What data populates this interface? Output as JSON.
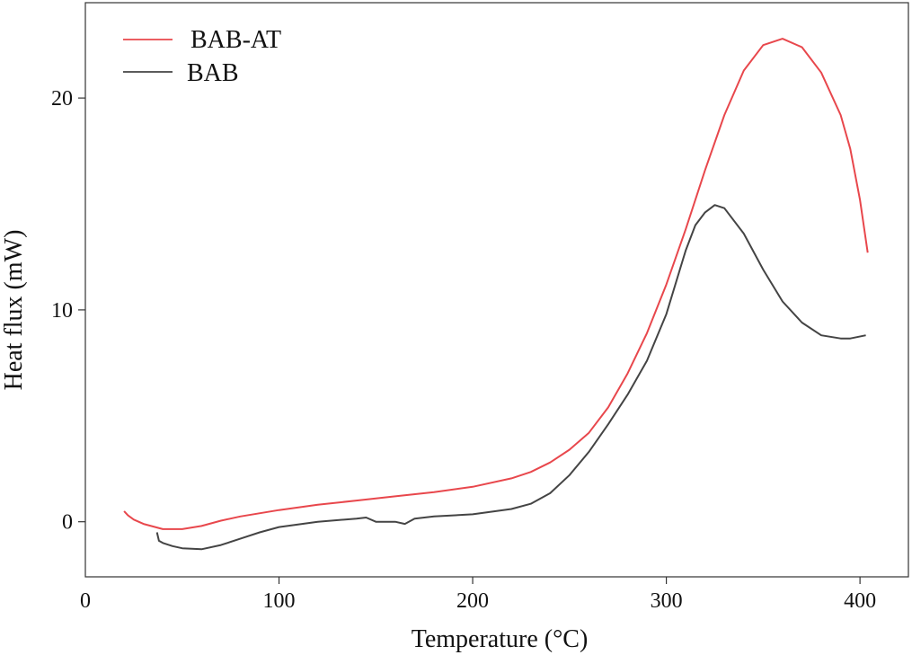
{
  "chart_data": {
    "type": "line",
    "xlabel": "Temperature (°C)",
    "ylabel": "Heat flux (mW)",
    "xlim": [
      0,
      425
    ],
    "ylim": [
      -2.6,
      24.5
    ],
    "x_ticks": [
      {
        "value": 0,
        "label": "0"
      },
      {
        "value": 100,
        "label": "100"
      },
      {
        "value": 200,
        "label": "200"
      },
      {
        "value": 300,
        "label": "300"
      },
      {
        "value": 400,
        "label": "400"
      }
    ],
    "y_ticks": [
      {
        "value": 0,
        "label": "0"
      },
      {
        "value": 10,
        "label": "10"
      },
      {
        "value": 20,
        "label": "20"
      }
    ],
    "grid": false,
    "legend_position": "top-left",
    "series": [
      {
        "name": "BAB-AT",
        "color": "#e8474c",
        "points": [
          [
            20,
            0.5
          ],
          [
            22,
            0.3
          ],
          [
            25,
            0.1
          ],
          [
            30,
            -0.1
          ],
          [
            40,
            -0.35
          ],
          [
            50,
            -0.35
          ],
          [
            60,
            -0.2
          ],
          [
            70,
            0.05
          ],
          [
            80,
            0.25
          ],
          [
            100,
            0.55
          ],
          [
            120,
            0.8
          ],
          [
            140,
            1.0
          ],
          [
            160,
            1.2
          ],
          [
            180,
            1.4
          ],
          [
            200,
            1.65
          ],
          [
            220,
            2.05
          ],
          [
            230,
            2.35
          ],
          [
            240,
            2.8
          ],
          [
            250,
            3.4
          ],
          [
            260,
            4.2
          ],
          [
            270,
            5.4
          ],
          [
            280,
            7.0
          ],
          [
            290,
            8.9
          ],
          [
            300,
            11.2
          ],
          [
            310,
            13.8
          ],
          [
            320,
            16.6
          ],
          [
            330,
            19.2
          ],
          [
            340,
            21.3
          ],
          [
            350,
            22.5
          ],
          [
            360,
            22.8
          ],
          [
            370,
            22.4
          ],
          [
            380,
            21.2
          ],
          [
            390,
            19.2
          ],
          [
            395,
            17.6
          ],
          [
            400,
            15.2
          ],
          [
            404,
            12.7
          ]
        ]
      },
      {
        "name": "BAB",
        "color": "#444444",
        "points": [
          [
            37,
            -0.5
          ],
          [
            38,
            -0.9
          ],
          [
            40,
            -1.0
          ],
          [
            45,
            -1.15
          ],
          [
            50,
            -1.25
          ],
          [
            60,
            -1.3
          ],
          [
            70,
            -1.1
          ],
          [
            80,
            -0.8
          ],
          [
            90,
            -0.5
          ],
          [
            100,
            -0.25
          ],
          [
            120,
            0.0
          ],
          [
            140,
            0.15
          ],
          [
            145,
            0.2
          ],
          [
            150,
            0.0
          ],
          [
            160,
            0.0
          ],
          [
            165,
            -0.1
          ],
          [
            170,
            0.15
          ],
          [
            180,
            0.25
          ],
          [
            200,
            0.35
          ],
          [
            220,
            0.6
          ],
          [
            230,
            0.85
          ],
          [
            240,
            1.35
          ],
          [
            250,
            2.2
          ],
          [
            260,
            3.3
          ],
          [
            270,
            4.6
          ],
          [
            280,
            6.0
          ],
          [
            290,
            7.6
          ],
          [
            300,
            9.8
          ],
          [
            310,
            12.8
          ],
          [
            315,
            14.0
          ],
          [
            320,
            14.6
          ],
          [
            325,
            14.95
          ],
          [
            330,
            14.8
          ],
          [
            340,
            13.6
          ],
          [
            350,
            11.9
          ],
          [
            360,
            10.4
          ],
          [
            370,
            9.4
          ],
          [
            380,
            8.8
          ],
          [
            390,
            8.65
          ],
          [
            395,
            8.65
          ],
          [
            403,
            8.8
          ]
        ]
      }
    ]
  }
}
